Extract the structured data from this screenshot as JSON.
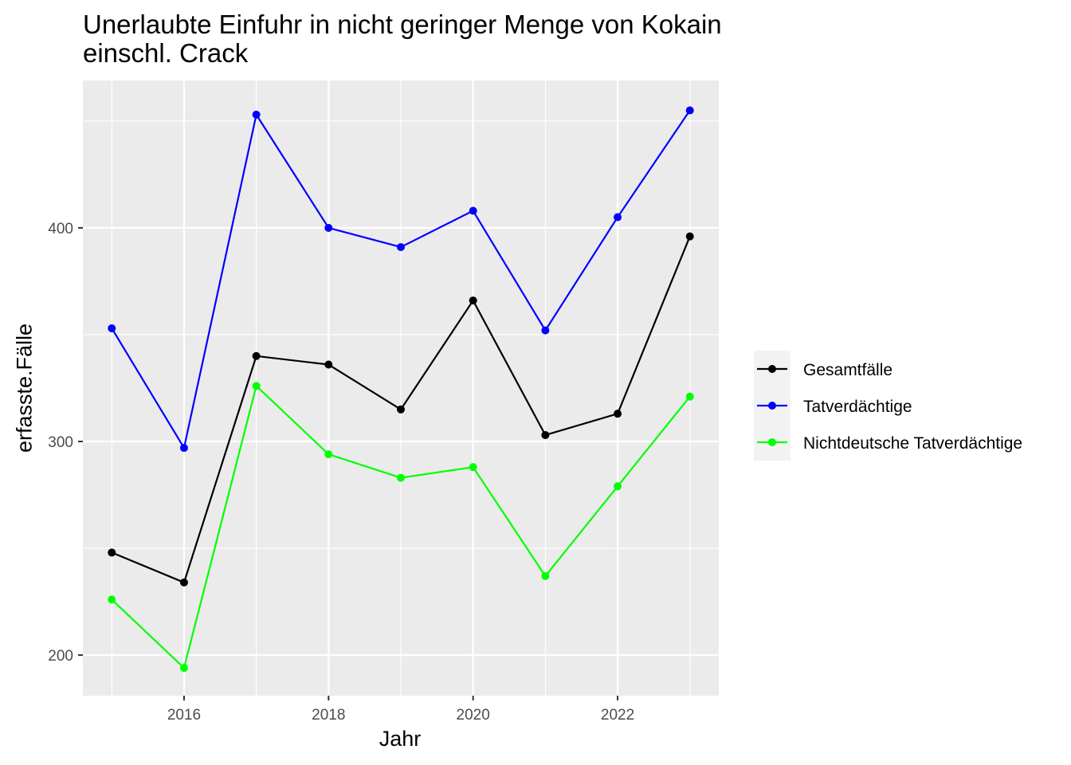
{
  "chart_data": {
    "type": "line",
    "title": [
      "Unerlaubte Einfuhr in nicht geringer Menge von Kokain",
      "einschl. Crack"
    ],
    "xlabel": "Jahr",
    "ylabel": "erfasste.Fälle",
    "x": [
      2015,
      2016,
      2017,
      2018,
      2019,
      2020,
      2021,
      2022,
      2023
    ],
    "x_ticks": [
      2016,
      2018,
      2020,
      2022
    ],
    "y_ticks": [
      200,
      300,
      400
    ],
    "xlim": [
      2014.6,
      2023.4
    ],
    "ylim": [
      181,
      469
    ],
    "grid": true,
    "legend": "right",
    "series": [
      {
        "name": "Gesamtfälle",
        "color": "#000000",
        "values": [
          248,
          234,
          340,
          336,
          315,
          366,
          303,
          313,
          396
        ]
      },
      {
        "name": "Tatverdächtige",
        "color": "#0000ff",
        "values": [
          353,
          297,
          453,
          400,
          391,
          408,
          352,
          405,
          455
        ]
      },
      {
        "name": "Nichtdeutsche Tatverdächtige",
        "color": "#00ff00",
        "values": [
          226,
          194,
          326,
          294,
          283,
          288,
          237,
          279,
          321
        ]
      }
    ]
  }
}
